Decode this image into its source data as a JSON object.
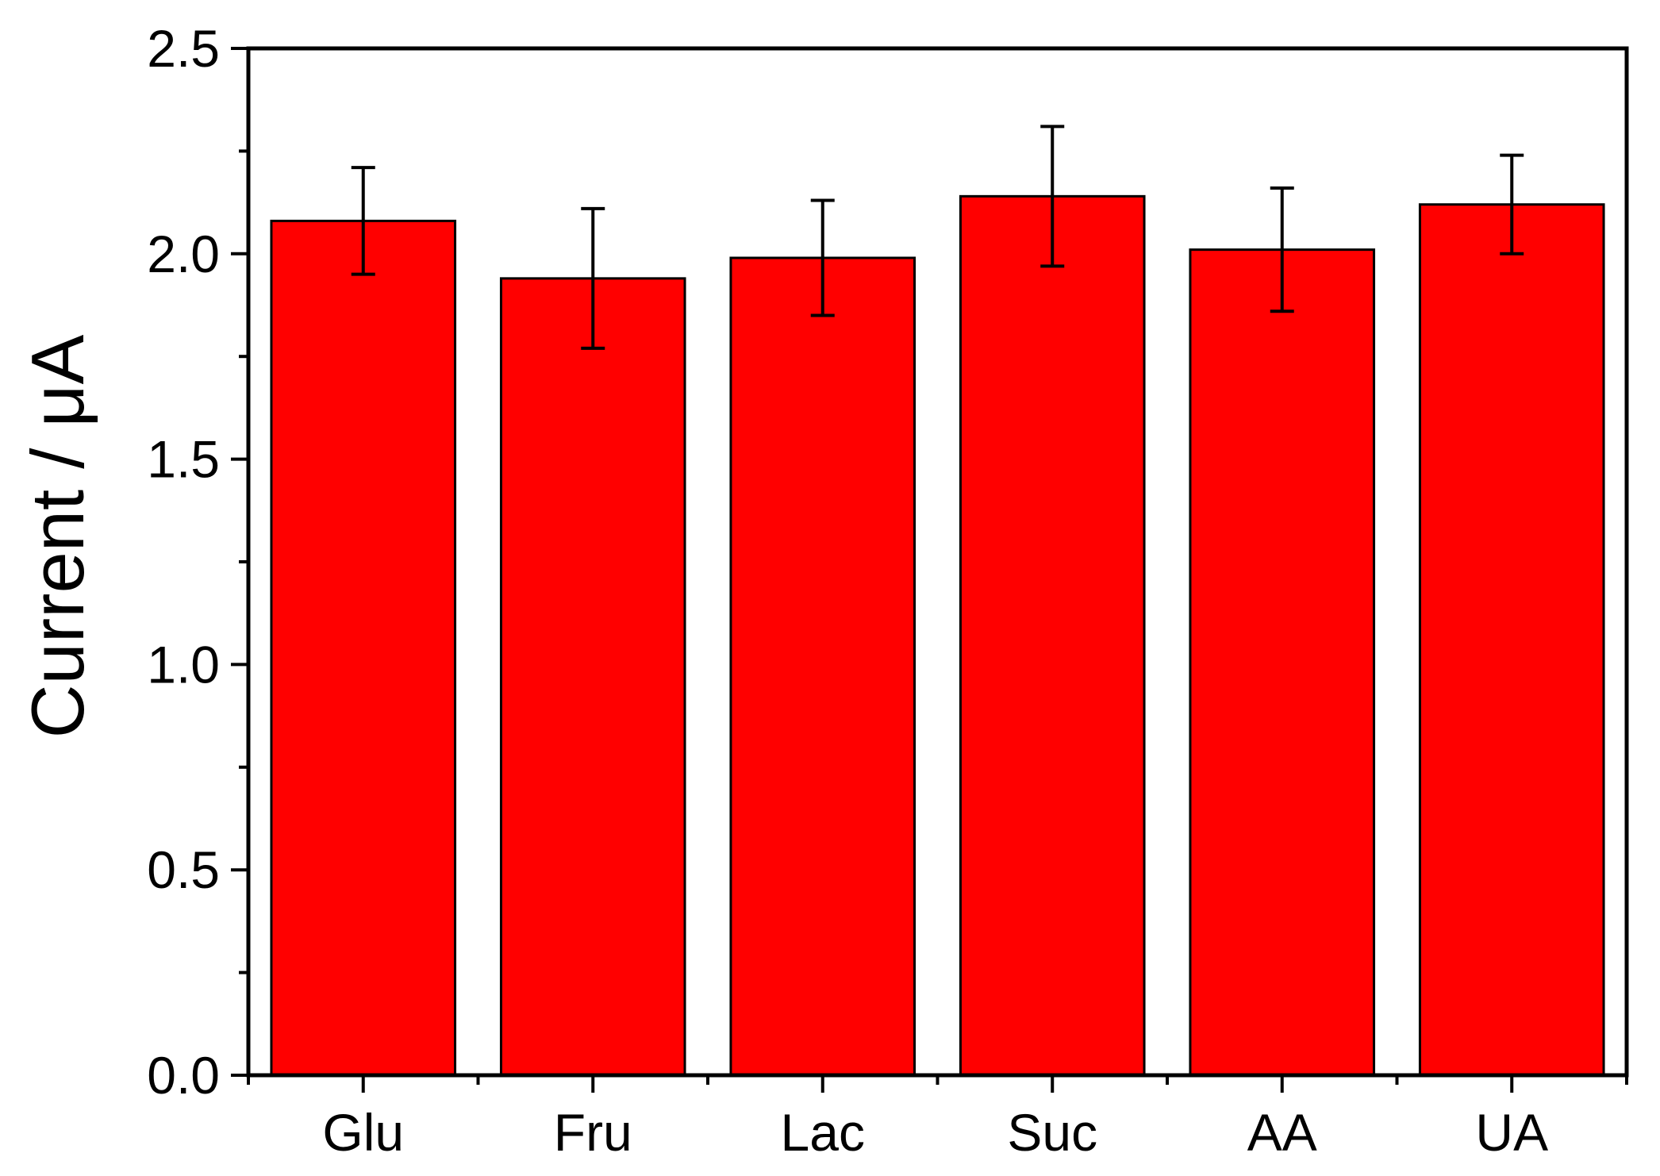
{
  "chart_data": {
    "type": "bar",
    "title": "",
    "xlabel": "",
    "ylabel": "Current / μA",
    "categories": [
      "Glu",
      "Fru",
      "Lac",
      "Suc",
      "AA",
      "UA"
    ],
    "values": [
      2.08,
      1.94,
      1.99,
      2.14,
      2.01,
      2.12
    ],
    "error_low": [
      1.95,
      1.77,
      1.85,
      1.97,
      1.86,
      2.0
    ],
    "error_high": [
      2.21,
      2.11,
      2.13,
      2.31,
      2.16,
      2.24
    ],
    "ylim": [
      0,
      2.5
    ],
    "yticks": [
      "0.0",
      "0.5",
      "1.0",
      "1.5",
      "2.0",
      "2.5"
    ],
    "grid": false,
    "legend": "none",
    "colors": {
      "bar_fill": "#ff0000",
      "bar_edge": "#000000",
      "axis": "#000000"
    }
  }
}
